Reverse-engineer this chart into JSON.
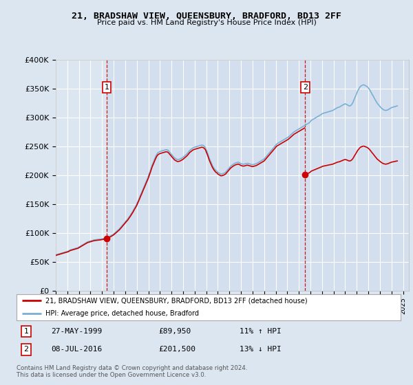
{
  "title": "21, BRADSHAW VIEW, QUEENSBURY, BRADFORD, BD13 2FF",
  "subtitle": "Price paid vs. HM Land Registry's House Price Index (HPI)",
  "ylim": [
    0,
    400000
  ],
  "yticks": [
    0,
    50000,
    100000,
    150000,
    200000,
    250000,
    300000,
    350000,
    400000
  ],
  "ytick_labels": [
    "£0",
    "£50K",
    "£100K",
    "£150K",
    "£200K",
    "£250K",
    "£300K",
    "£350K",
    "£400K"
  ],
  "xlim_start": 1995.0,
  "xlim_end": 2025.5,
  "sale1_x": 1999.4,
  "sale1_y": 89950,
  "sale2_x": 2016.54,
  "sale2_y": 201500,
  "background_color": "#dce6f1",
  "plot_bg_color": "#dce6f1",
  "plot_bg_highlight": "#ccdaee",
  "red_line_color": "#cc0000",
  "blue_line_color": "#7aafd4",
  "grid_color": "#ffffff",
  "marker_box_color": "#cc0000",
  "sale1_date": "27-MAY-1999",
  "sale1_price": "£89,950",
  "sale1_hpi": "11% ↑ HPI",
  "sale2_date": "08-JUL-2016",
  "sale2_price": "£201,500",
  "sale2_hpi": "13% ↓ HPI",
  "footnote": "Contains HM Land Registry data © Crown copyright and database right 2024.\nThis data is licensed under the Open Government Licence v3.0.",
  "legend_line1": "21, BRADSHAW VIEW, QUEENSBURY, BRADFORD, BD13 2FF (detached house)",
  "legend_line2": "HPI: Average price, detached house, Bradford",
  "hpi_data_x": [
    1995.0,
    1995.08,
    1995.17,
    1995.25,
    1995.33,
    1995.42,
    1995.5,
    1995.58,
    1995.67,
    1995.75,
    1995.83,
    1995.92,
    1996.0,
    1996.08,
    1996.17,
    1996.25,
    1996.33,
    1996.42,
    1996.5,
    1996.58,
    1996.67,
    1996.75,
    1996.83,
    1996.92,
    1997.0,
    1997.08,
    1997.17,
    1997.25,
    1997.33,
    1997.42,
    1997.5,
    1997.58,
    1997.67,
    1997.75,
    1997.83,
    1997.92,
    1998.0,
    1998.08,
    1998.17,
    1998.25,
    1998.33,
    1998.42,
    1998.5,
    1998.58,
    1998.67,
    1998.75,
    1998.83,
    1998.92,
    1999.0,
    1999.08,
    1999.17,
    1999.25,
    1999.33,
    1999.42,
    1999.5,
    1999.58,
    1999.67,
    1999.75,
    1999.83,
    1999.92,
    2000.0,
    2000.08,
    2000.17,
    2000.25,
    2000.33,
    2000.42,
    2000.5,
    2000.58,
    2000.67,
    2000.75,
    2000.83,
    2000.92,
    2001.0,
    2001.08,
    2001.17,
    2001.25,
    2001.33,
    2001.42,
    2001.5,
    2001.58,
    2001.67,
    2001.75,
    2001.83,
    2001.92,
    2002.0,
    2002.08,
    2002.17,
    2002.25,
    2002.33,
    2002.42,
    2002.5,
    2002.58,
    2002.67,
    2002.75,
    2002.83,
    2002.92,
    2003.0,
    2003.08,
    2003.17,
    2003.25,
    2003.33,
    2003.42,
    2003.5,
    2003.58,
    2003.67,
    2003.75,
    2003.83,
    2003.92,
    2004.0,
    2004.08,
    2004.17,
    2004.25,
    2004.33,
    2004.42,
    2004.5,
    2004.58,
    2004.67,
    2004.75,
    2004.83,
    2004.92,
    2005.0,
    2005.08,
    2005.17,
    2005.25,
    2005.33,
    2005.42,
    2005.5,
    2005.58,
    2005.67,
    2005.75,
    2005.83,
    2005.92,
    2006.0,
    2006.08,
    2006.17,
    2006.25,
    2006.33,
    2006.42,
    2006.5,
    2006.58,
    2006.67,
    2006.75,
    2006.83,
    2006.92,
    2007.0,
    2007.08,
    2007.17,
    2007.25,
    2007.33,
    2007.42,
    2007.5,
    2007.58,
    2007.67,
    2007.75,
    2007.83,
    2007.92,
    2008.0,
    2008.08,
    2008.17,
    2008.25,
    2008.33,
    2008.42,
    2008.5,
    2008.58,
    2008.67,
    2008.75,
    2008.83,
    2008.92,
    2009.0,
    2009.08,
    2009.17,
    2009.25,
    2009.33,
    2009.42,
    2009.5,
    2009.58,
    2009.67,
    2009.75,
    2009.83,
    2009.92,
    2010.0,
    2010.08,
    2010.17,
    2010.25,
    2010.33,
    2010.42,
    2010.5,
    2010.58,
    2010.67,
    2010.75,
    2010.83,
    2010.92,
    2011.0,
    2011.08,
    2011.17,
    2011.25,
    2011.33,
    2011.42,
    2011.5,
    2011.58,
    2011.67,
    2011.75,
    2011.83,
    2011.92,
    2012.0,
    2012.08,
    2012.17,
    2012.25,
    2012.33,
    2012.42,
    2012.5,
    2012.58,
    2012.67,
    2012.75,
    2012.83,
    2012.92,
    2013.0,
    2013.08,
    2013.17,
    2013.25,
    2013.33,
    2013.42,
    2013.5,
    2013.58,
    2013.67,
    2013.75,
    2013.83,
    2013.92,
    2014.0,
    2014.08,
    2014.17,
    2014.25,
    2014.33,
    2014.42,
    2014.5,
    2014.58,
    2014.67,
    2014.75,
    2014.83,
    2014.92,
    2015.0,
    2015.08,
    2015.17,
    2015.25,
    2015.33,
    2015.42,
    2015.5,
    2015.58,
    2015.67,
    2015.75,
    2015.83,
    2015.92,
    2016.0,
    2016.08,
    2016.17,
    2016.25,
    2016.33,
    2016.42,
    2016.5,
    2016.58,
    2016.67,
    2016.75,
    2016.83,
    2016.92,
    2017.0,
    2017.08,
    2017.17,
    2017.25,
    2017.33,
    2017.42,
    2017.5,
    2017.58,
    2017.67,
    2017.75,
    2017.83,
    2017.92,
    2018.0,
    2018.08,
    2018.17,
    2018.25,
    2018.33,
    2018.42,
    2018.5,
    2018.58,
    2018.67,
    2018.75,
    2018.83,
    2018.92,
    2019.0,
    2019.08,
    2019.17,
    2019.25,
    2019.33,
    2019.42,
    2019.5,
    2019.58,
    2019.67,
    2019.75,
    2019.83,
    2019.92,
    2020.0,
    2020.08,
    2020.17,
    2020.25,
    2020.33,
    2020.42,
    2020.5,
    2020.58,
    2020.67,
    2020.75,
    2020.83,
    2020.92,
    2021.0,
    2021.08,
    2021.17,
    2021.25,
    2021.33,
    2021.42,
    2021.5,
    2021.58,
    2021.67,
    2021.75,
    2021.83,
    2021.92,
    2022.0,
    2022.08,
    2022.17,
    2022.25,
    2022.33,
    2022.42,
    2022.5,
    2022.58,
    2022.67,
    2022.75,
    2022.83,
    2022.92,
    2023.0,
    2023.08,
    2023.17,
    2023.25,
    2023.33,
    2023.42,
    2023.5,
    2023.58,
    2023.67,
    2023.75,
    2023.83,
    2023.92,
    2024.0,
    2024.08,
    2024.17,
    2024.25,
    2024.33,
    2024.42,
    2024.5
  ],
  "hpi_data_y": [
    62000,
    62500,
    63000,
    63500,
    64000,
    64500,
    65000,
    65500,
    66000,
    66500,
    67000,
    67500,
    68000,
    68500,
    69500,
    70500,
    71000,
    71500,
    72000,
    72500,
    73000,
    73500,
    74000,
    74500,
    75500,
    76500,
    77500,
    78500,
    79500,
    80500,
    81500,
    82500,
    83500,
    84500,
    85000,
    85500,
    86000,
    86500,
    87000,
    87500,
    88000,
    88200,
    88400,
    88600,
    88800,
    89000,
    89200,
    89500,
    89800,
    90100,
    90400,
    90700,
    91000,
    91300,
    92000,
    93000,
    94000,
    95000,
    96000,
    97000,
    98000,
    99500,
    101000,
    102500,
    104000,
    105500,
    107000,
    109000,
    111000,
    113000,
    115000,
    117000,
    119000,
    121000,
    123000,
    125000,
    127500,
    130000,
    132500,
    135000,
    138000,
    141000,
    144000,
    147000,
    150000,
    154000,
    158000,
    162000,
    166000,
    170000,
    174000,
    178000,
    182000,
    186000,
    190000,
    194000,
    198000,
    203000,
    208000,
    213000,
    218000,
    222000,
    226000,
    230000,
    234000,
    237000,
    239000,
    240000,
    241000,
    241500,
    242000,
    242500,
    243000,
    243500,
    244000,
    244000,
    243500,
    242000,
    240000,
    238000,
    236000,
    234000,
    232000,
    230000,
    229000,
    228000,
    227000,
    227000,
    227500,
    228000,
    229000,
    230000,
    231000,
    232500,
    234000,
    235500,
    237000,
    239000,
    241000,
    243000,
    244500,
    246000,
    247000,
    248000,
    248500,
    249000,
    249500,
    250000,
    250500,
    251000,
    251500,
    252000,
    252000,
    251500,
    250000,
    248000,
    244000,
    240000,
    235000,
    230000,
    226000,
    222000,
    218000,
    215000,
    212000,
    210000,
    208000,
    207000,
    205000,
    204000,
    203000,
    202000,
    202000,
    202500,
    203000,
    204000,
    205000,
    207000,
    209000,
    211000,
    213000,
    215000,
    216500,
    218000,
    219000,
    220000,
    221000,
    221500,
    222000,
    222500,
    222000,
    221000,
    220000,
    219500,
    219000,
    219000,
    219500,
    220000,
    220500,
    220500,
    220000,
    219500,
    219000,
    218500,
    218000,
    218500,
    219000,
    219500,
    220000,
    221000,
    222000,
    223000,
    224000,
    225000,
    226000,
    227000,
    228000,
    230000,
    232000,
    234000,
    236000,
    238000,
    240000,
    242000,
    244000,
    246000,
    248000,
    250000,
    252000,
    254000,
    255000,
    256000,
    257000,
    258000,
    259000,
    260000,
    261000,
    262000,
    263000,
    264000,
    265000,
    266000,
    267500,
    269000,
    270500,
    272000,
    273500,
    275000,
    276000,
    277000,
    278000,
    279000,
    280000,
    281000,
    282000,
    283000,
    284000,
    285000,
    286000,
    287000,
    288000,
    289000,
    290000,
    291000,
    293000,
    295000,
    296000,
    297000,
    298000,
    299000,
    300000,
    301000,
    302000,
    303000,
    304000,
    305000,
    306000,
    307000,
    307500,
    308000,
    308500,
    309000,
    309500,
    310000,
    310500,
    311000,
    311500,
    312000,
    313000,
    314000,
    315000,
    316000,
    317000,
    317500,
    318000,
    319000,
    320000,
    321000,
    322000,
    323000,
    323500,
    323000,
    322000,
    321000,
    320000,
    320000,
    321000,
    323000,
    326000,
    330000,
    334000,
    338000,
    342000,
    346000,
    349000,
    352000,
    354000,
    355000,
    356000,
    356500,
    356000,
    355000,
    354000,
    353000,
    351000,
    349000,
    346000,
    343000,
    340000,
    337000,
    334000,
    331000,
    328000,
    325000,
    323000,
    321000,
    319000,
    317000,
    315500,
    314000,
    313000,
    312500,
    312000,
    312500,
    313000,
    314000,
    315000,
    316000,
    317000,
    317500,
    318000,
    318500,
    319000,
    319500,
    320000
  ]
}
